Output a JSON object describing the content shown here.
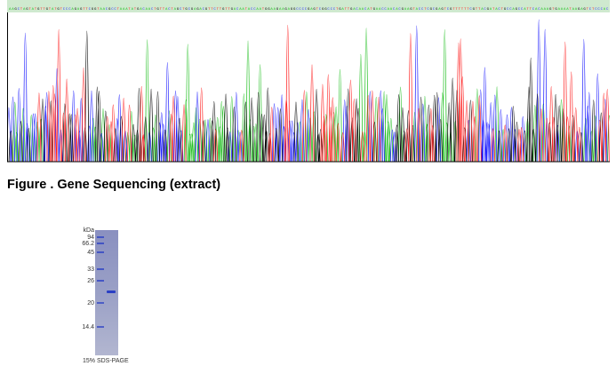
{
  "sequencing": {
    "caption": "Figure . Gene Sequencing (extract)",
    "trace_colors": [
      "#1fbf1f",
      "#1a1aff",
      "#000000",
      "#ff1a1a"
    ],
    "bar_color": "#1fbf1f"
  },
  "gel": {
    "unit_label": "kDa",
    "markers": [
      "94",
      "66.2",
      "45",
      "33",
      "26",
      "20",
      "14.4"
    ],
    "caption": "15% SDS-PAGE",
    "lane_color": "#7f86b8",
    "band_color": "#2a3fc4"
  }
}
